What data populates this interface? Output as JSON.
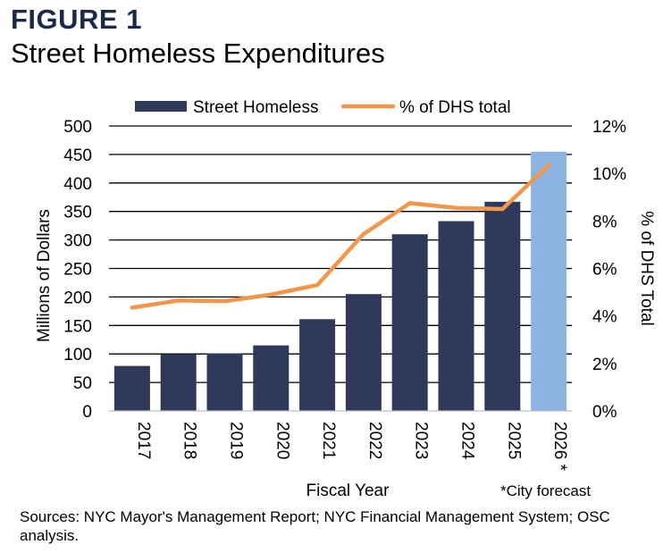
{
  "figure_label": "FIGURE 1",
  "figure_title": "Street Homeless Expenditures",
  "chart_data": {
    "type": "bar",
    "categories": [
      "2017",
      "2018",
      "2019",
      "2020",
      "2021",
      "2022",
      "2023",
      "2024",
      "2025",
      "2026 *"
    ],
    "series": [
      {
        "name": "Street Homeless",
        "kind": "bar",
        "axis": "left",
        "values": [
          79,
          99,
          101,
          115,
          161,
          205,
          310,
          333,
          367,
          455
        ],
        "colors": [
          "#2f3a5a",
          "#2f3a5a",
          "#2f3a5a",
          "#2f3a5a",
          "#2f3a5a",
          "#2f3a5a",
          "#2f3a5a",
          "#2f3a5a",
          "#2f3a5a",
          "#8db3e2"
        ]
      },
      {
        "name": "% of DHS total",
        "kind": "line",
        "axis": "right",
        "values": [
          4.35,
          4.65,
          4.62,
          4.9,
          5.3,
          7.45,
          8.75,
          8.55,
          8.5,
          10.35
        ],
        "color": "#f4964a"
      }
    ],
    "ylabel": "Millions of Dollars",
    "y2label": "% of DHS Total",
    "xlabel": "Fiscal Year",
    "ylim": [
      0,
      500
    ],
    "yticks": [
      0,
      50,
      100,
      150,
      200,
      250,
      300,
      350,
      400,
      450,
      500
    ],
    "y2lim": [
      0,
      12
    ],
    "y2ticks": [
      "0%",
      "2%",
      "4%",
      "6%",
      "8%",
      "10%",
      "12%"
    ],
    "legend_position": "top",
    "grid": true,
    "annotation": "*City forecast"
  },
  "sources": "Sources: NYC Mayor's Management Report; NYC Financial Management System; OSC analysis."
}
